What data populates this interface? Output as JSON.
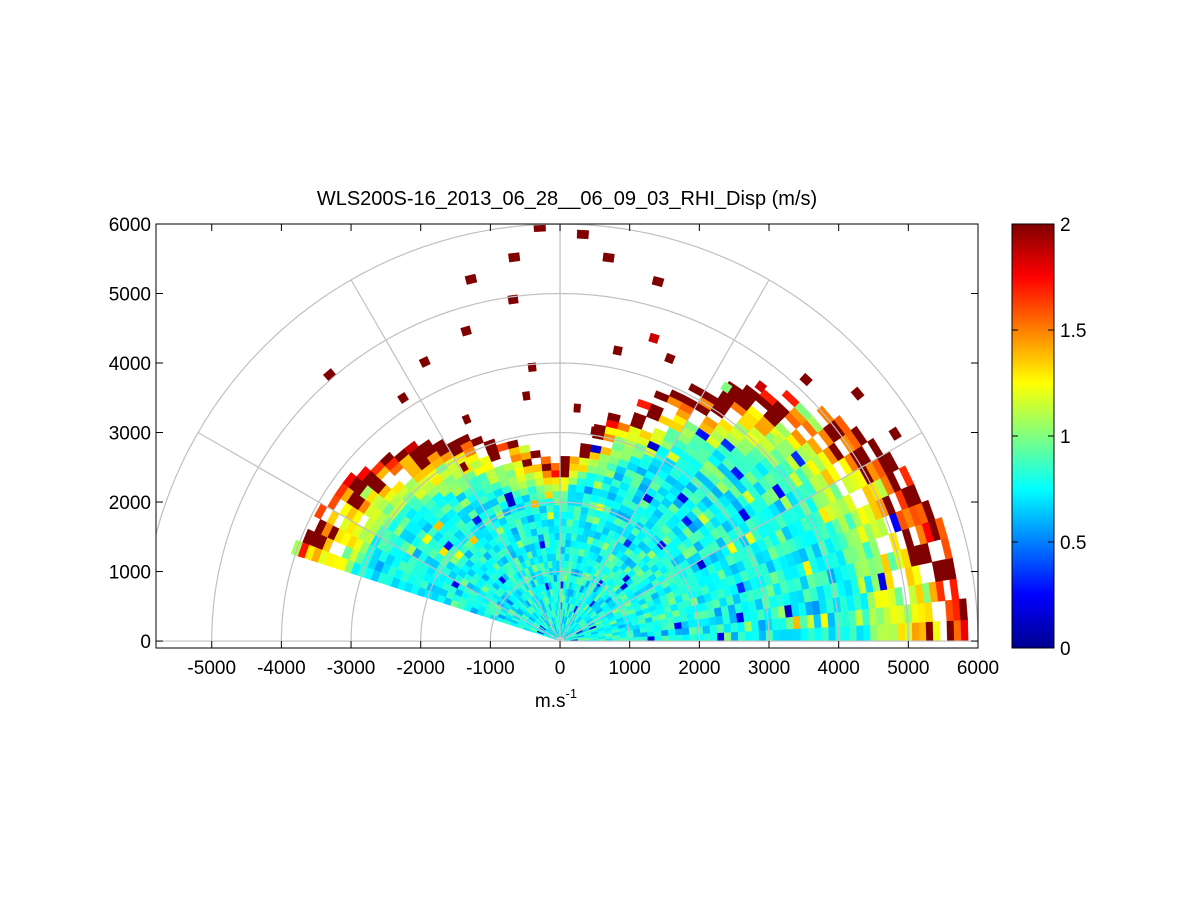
{
  "chart_data": {
    "type": "heatmap",
    "subtype": "polar-rhi",
    "title": "WLS200S-16_2013_06_28__06_09_03_RHI_Disp (m/s)",
    "xlabel_base": "m.s",
    "xlabel_exp": "-1",
    "ylabel": "",
    "xlim": [
      -5800,
      6000
    ],
    "ylim": [
      -100,
      6000
    ],
    "xticks": [
      -5000,
      -4000,
      -3000,
      -2000,
      -1000,
      0,
      1000,
      2000,
      3000,
      4000,
      5000,
      6000
    ],
    "yticks": [
      0,
      1000,
      2000,
      3000,
      4000,
      5000,
      6000
    ],
    "xtick_labels": [
      "-5000",
      "-4000",
      "-3000",
      "-2000",
      "-1000",
      "0",
      "1000",
      "2000",
      "3000",
      "4000",
      "5000",
      "6000"
    ],
    "ytick_labels": [
      "0",
      "1000",
      "2000",
      "3000",
      "4000",
      "5000",
      "6000"
    ],
    "grid": true,
    "range_rings_m": [
      1000,
      2000,
      3000,
      4000,
      5000,
      6000
    ],
    "spokes_deg": [
      30,
      60,
      90,
      120,
      150
    ],
    "scan": {
      "elevation_min_deg": 0,
      "elevation_max_deg": 162,
      "elevation_step_deg": 3,
      "range_gate_m": 100,
      "dense_max_range_m": 2500,
      "dense_range_max_rise_m": 3300,
      "value_mean_m_s": 0.78,
      "value_spread_m_s": 0.18
    },
    "colorbar": {
      "colormap": "jet",
      "clim": [
        0,
        2
      ],
      "ticks": [
        0,
        0.5,
        1,
        1.5,
        2
      ],
      "tick_labels": [
        "0",
        "0.5",
        "1",
        "1.5",
        "2"
      ]
    },
    "sparse_echoes": [
      {
        "range_m": 2800,
        "elev_deg": 118,
        "value": 2
      },
      {
        "range_m": 3400,
        "elev_deg": 112,
        "value": 2
      },
      {
        "range_m": 4100,
        "elev_deg": 122,
        "value": 2
      },
      {
        "range_m": 4400,
        "elev_deg": 115,
        "value": 2
      },
      {
        "range_m": 4600,
        "elev_deg": 106,
        "value": 2
      },
      {
        "range_m": 5300,
        "elev_deg": 103,
        "value": 2
      },
      {
        "range_m": 5500,
        "elev_deg": 96,
        "value": 2
      },
      {
        "range_m": 5000,
        "elev_deg": 130,
        "value": 2
      },
      {
        "range_m": 3500,
        "elev_deg": 97,
        "value": 2
      },
      {
        "range_m": 3900,
        "elev_deg": 95,
        "value": 2
      },
      {
        "range_m": 3300,
        "elev_deg": 85,
        "value": 2
      },
      {
        "range_m": 4200,
        "elev_deg": 78,
        "value": 2
      },
      {
        "range_m": 5500,
        "elev_deg": 82,
        "value": 2
      },
      {
        "range_m": 5800,
        "elev_deg": 86,
        "value": 2
      },
      {
        "range_m": 5300,
        "elev_deg": 74,
        "value": 2
      },
      {
        "range_m": 4500,
        "elev_deg": 72,
        "value": 1.85
      },
      {
        "range_m": 5900,
        "elev_deg": 92,
        "value": 2
      },
      {
        "range_m": 4600,
        "elev_deg": 51,
        "value": 1.85
      },
      {
        "range_m": 4500,
        "elev_deg": 45,
        "value": 2
      },
      {
        "range_m": 5100,
        "elev_deg": 46,
        "value": 2
      },
      {
        "range_m": 5500,
        "elev_deg": 39,
        "value": 2
      },
      {
        "range_m": 4300,
        "elev_deg": 68,
        "value": 2
      },
      {
        "range_m": 3000,
        "elev_deg": 80,
        "value": 2
      },
      {
        "range_m": 4900,
        "elev_deg": 97,
        "value": 2
      },
      {
        "range_m": 4300,
        "elev_deg": 56,
        "value": 1.0
      },
      {
        "range_m": 4200,
        "elev_deg": 42,
        "value": 1.1
      },
      {
        "range_m": 4900,
        "elev_deg": 36,
        "value": 2
      },
      {
        "range_m": 5600,
        "elev_deg": 31,
        "value": 2
      }
    ]
  }
}
